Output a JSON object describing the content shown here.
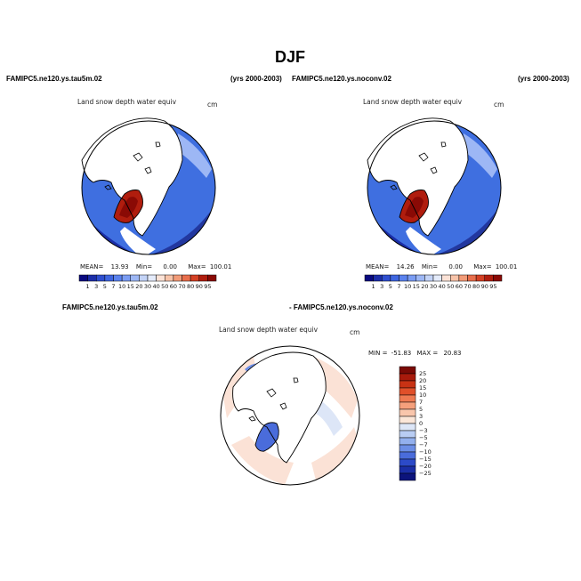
{
  "figure": {
    "title": "DJF"
  },
  "panels": [
    {
      "id": "tau5m",
      "case": "FAMIPC5.ne120.ys.tau5m.02",
      "years": "(yrs 2000-2003)",
      "variable": "Land snow depth water equiv",
      "units": "cm",
      "stats": {
        "mean_label": "MEAN=",
        "mean": "13.93",
        "min_label": "Min=",
        "min": "0.00",
        "max_label": "Max=",
        "max": "100.01"
      }
    },
    {
      "id": "noconv",
      "case": "FAMIPC5.ne120.ys.noconv.02",
      "years": "(yrs 2000-2003)",
      "variable": "Land snow depth water equiv",
      "units": "cm",
      "stats": {
        "mean_label": "MEAN=",
        "mean": "14.26",
        "min_label": "Min=",
        "min": "0.00",
        "max_label": "Max=",
        "max": "100.01"
      }
    },
    {
      "id": "diff",
      "case_a": "FAMIPC5.ne120.ys.tau5m.02",
      "case_b": "- FAMIPC5.ne120.ys.noconv.02",
      "variable": "Land snow depth water equiv",
      "units": "cm",
      "stats": {
        "min_label": "MIN =",
        "min": "-51.83",
        "max_label": "MAX =",
        "max": "20.83"
      }
    }
  ],
  "chart_data": [
    {
      "type": "heatmap",
      "projection": "north-polar-stereographic",
      "title": "Land snow depth water equiv",
      "units": "cm",
      "colorbar": {
        "orientation": "horizontal",
        "labels": [
          "1",
          "3",
          "5",
          "7",
          "10",
          "15",
          "20",
          "30",
          "40",
          "50",
          "60",
          "70",
          "80",
          "90",
          "95"
        ],
        "colors": [
          "#0a0a80",
          "#1c2ea8",
          "#2f4fcf",
          "#3f66e0",
          "#5a82ee",
          "#7a9cf3",
          "#9db7f5",
          "#c3d3f7",
          "#e4ebfa",
          "#fbe2d6",
          "#f7c3a9",
          "#f29b78",
          "#e86e4c",
          "#d44124",
          "#b01d0e",
          "#8a0a05"
        ]
      },
      "stats": {
        "mean": 13.93,
        "min": 0.0,
        "max": 100.01
      }
    },
    {
      "type": "heatmap",
      "projection": "north-polar-stereographic",
      "title": "Land snow depth water equiv",
      "units": "cm",
      "colorbar": {
        "orientation": "horizontal",
        "labels": [
          "1",
          "3",
          "5",
          "7",
          "10",
          "15",
          "20",
          "30",
          "40",
          "50",
          "60",
          "70",
          "80",
          "90",
          "95"
        ],
        "colors": [
          "#0a0a80",
          "#1c2ea8",
          "#2f4fcf",
          "#3f66e0",
          "#5a82ee",
          "#7a9cf3",
          "#9db7f5",
          "#c3d3f7",
          "#e4ebfa",
          "#fbe2d6",
          "#f7c3a9",
          "#f29b78",
          "#e86e4c",
          "#d44124",
          "#b01d0e",
          "#8a0a05"
        ]
      },
      "stats": {
        "mean": 14.26,
        "min": 0.0,
        "max": 100.01
      }
    },
    {
      "type": "heatmap",
      "projection": "north-polar-stereographic",
      "title": "Land snow depth water equiv",
      "units": "cm",
      "colorbar": {
        "orientation": "vertical",
        "labels": [
          "25",
          "20",
          "15",
          "10",
          "7",
          "5",
          "3",
          "0",
          "-3",
          "-5",
          "-7",
          "-10",
          "-15",
          "-20",
          "-25"
        ],
        "colors": [
          "#7a0a05",
          "#a81a0b",
          "#c83214",
          "#e0502a",
          "#ee7a52",
          "#f5a07c",
          "#f9c6ac",
          "#fbe6d8",
          "#dde6f7",
          "#b9cdf3",
          "#93b0ee",
          "#6c8ee6",
          "#4a6cdb",
          "#2c4ac8",
          "#1a2ea6",
          "#0c147c"
        ]
      },
      "stats": {
        "min": -51.83,
        "max": 20.83
      }
    }
  ]
}
